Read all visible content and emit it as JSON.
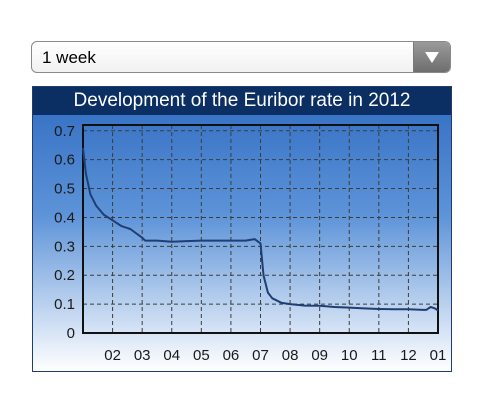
{
  "dropdown": {
    "selected": "1 week",
    "icon": "chevron-down-icon"
  },
  "chart_data": {
    "type": "line",
    "title": "Development of the Euribor rate in 2012",
    "xlabel": "",
    "ylabel": "",
    "x_ticks": [
      "02",
      "03",
      "04",
      "05",
      "06",
      "07",
      "08",
      "09",
      "10",
      "11",
      "12",
      "01"
    ],
    "y_ticks": [
      "0",
      "0.1",
      "0.2",
      "0.3",
      "0.4",
      "0.5",
      "0.6",
      "0.7"
    ],
    "xlim": [
      1,
      13
    ],
    "ylim": [
      0,
      0.72
    ],
    "grid": true,
    "legend": "none",
    "line_color": "#1f3e72",
    "series": [
      {
        "x": [
          1.0,
          1.1,
          1.25,
          1.45,
          1.7,
          2.0,
          2.3,
          2.6,
          3.0,
          3.1,
          3.3,
          3.5,
          4.0,
          4.5,
          5.0,
          5.5,
          6.0,
          6.5,
          6.8,
          7.0,
          7.1,
          7.25,
          7.4,
          7.7,
          8.0,
          8.5,
          9.0,
          9.5,
          10.0,
          10.5,
          11.0,
          11.5,
          12.0,
          12.5,
          12.6,
          12.75,
          12.9,
          13.0
        ],
        "y": [
          0.64,
          0.55,
          0.48,
          0.44,
          0.41,
          0.39,
          0.37,
          0.36,
          0.33,
          0.32,
          0.32,
          0.32,
          0.316,
          0.318,
          0.32,
          0.32,
          0.32,
          0.32,
          0.325,
          0.31,
          0.2,
          0.14,
          0.12,
          0.105,
          0.1,
          0.095,
          0.094,
          0.09,
          0.088,
          0.085,
          0.083,
          0.082,
          0.082,
          0.08,
          0.08,
          0.09,
          0.085,
          0.078
        ]
      }
    ]
  }
}
